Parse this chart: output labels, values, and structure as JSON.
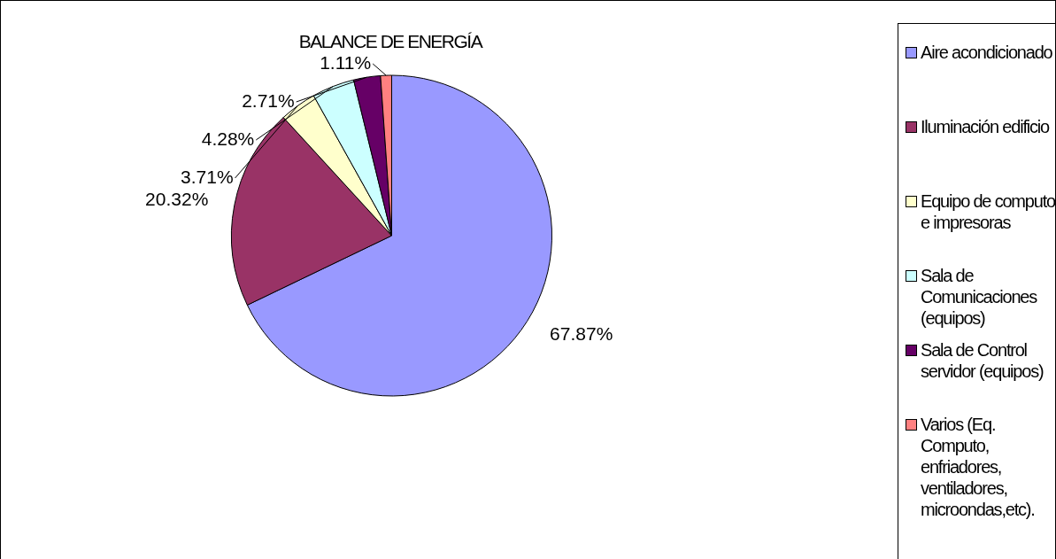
{
  "chart_data": {
    "type": "pie",
    "title": "BALANCE DE ENERGÍA",
    "categories": [
      "Aire acondicionado",
      "Iluminación edificio",
      "Equipo de computo e impresoras",
      "Sala de Comunicaciones (equipos)",
      "Sala de Control servidor (equipos)",
      "Varios (Eq. Computo, enfriadores, ventiladores, microondas,etc)."
    ],
    "values": [
      67.87,
      20.32,
      3.71,
      4.28,
      2.71,
      1.11
    ],
    "colors": [
      "#9999ff",
      "#993366",
      "#ffffcc",
      "#ccffff",
      "#660066",
      "#ff8080"
    ],
    "value_labels": [
      "67.87%",
      "20.32%",
      "3.71%",
      "4.28%",
      "2.71%",
      "1.11%"
    ],
    "legend": "right"
  }
}
